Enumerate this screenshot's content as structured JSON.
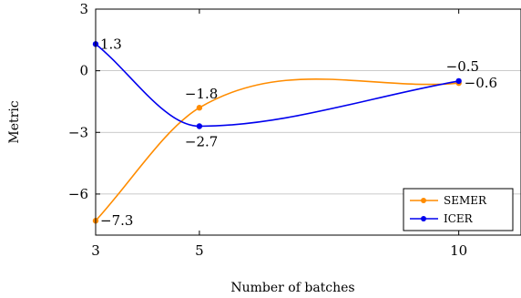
{
  "chart_data": {
    "type": "line",
    "xlabel": "Number of batches",
    "ylabel": "Metric",
    "xlim": [
      3,
      11.2
    ],
    "ylim": [
      -8,
      3
    ],
    "xticks": [
      3,
      5,
      10
    ],
    "yticks": [
      3,
      0,
      -3,
      -6
    ],
    "xtick_labels": [
      "3",
      "5",
      "10"
    ],
    "ytick_labels": [
      "3",
      "0",
      "−3",
      "−6"
    ],
    "grid": "horizontal",
    "legend_position": "bottom-right",
    "series": [
      {
        "name": "SEMER",
        "color": "#ff8c00",
        "x": [
          3,
          5,
          10
        ],
        "y": [
          -7.3,
          -1.8,
          -0.6
        ],
        "labels": [
          "−7.3",
          "−1.8",
          "−0.6"
        ]
      },
      {
        "name": "ICER",
        "color": "#0000ee",
        "x": [
          3,
          5,
          10
        ],
        "y": [
          1.3,
          -2.7,
          -0.5
        ],
        "labels": [
          "1.3",
          "−2.7",
          "−0.5"
        ]
      }
    ]
  }
}
